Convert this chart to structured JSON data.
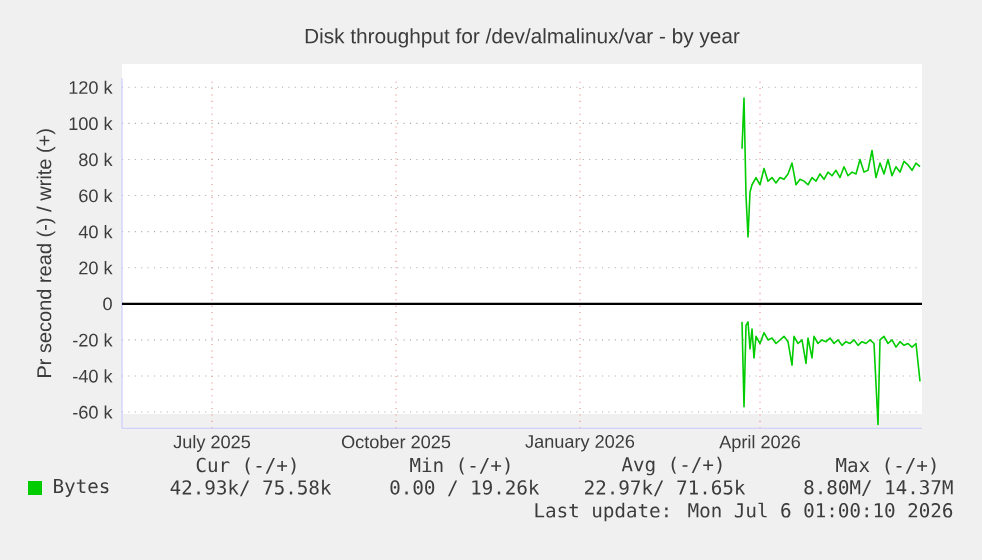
{
  "chart_data": {
    "type": "line",
    "title": "Disk throughput for /dev/almalinux/var - by year",
    "ylabel": "Pr second read (-) / write (+)",
    "xlim": [
      "2025-06-01",
      "2026-07-06"
    ],
    "ylim": [
      -69000,
      125000
    ],
    "xticks": [
      {
        "value": "2025-07-16",
        "label": "July 2025"
      },
      {
        "value": "2025-10-16",
        "label": "October 2025"
      },
      {
        "value": "2026-01-16",
        "label": "January 2026"
      },
      {
        "value": "2026-04-16",
        "label": "April 2026"
      }
    ],
    "yticks": [
      {
        "value": -60000,
        "label": "-60 k"
      },
      {
        "value": -40000,
        "label": "-40 k"
      },
      {
        "value": -20000,
        "label": "-20 k"
      },
      {
        "value": 0,
        "label": "0"
      },
      {
        "value": 20000,
        "label": "20 k"
      },
      {
        "value": 40000,
        "label": "40 k"
      },
      {
        "value": 60000,
        "label": "60 k"
      },
      {
        "value": 80000,
        "label": "80 k"
      },
      {
        "value": 100000,
        "label": "100 k"
      },
      {
        "value": 120000,
        "label": "120 k"
      }
    ],
    "grid": true,
    "legend": "bottom left",
    "line_style": "solid",
    "ref_lines": [
      {
        "axis": "y",
        "value": 0,
        "color": "#000000"
      }
    ],
    "series": [
      {
        "name": "Bytes",
        "color": "#00cc00",
        "x": [
          "2026-04-07",
          "2026-04-08",
          "2026-04-09",
          "2026-04-10",
          "2026-04-11",
          "2026-04-12",
          "2026-04-14",
          "2026-04-16",
          "2026-04-18",
          "2026-04-20",
          "2026-04-22",
          "2026-04-24",
          "2026-04-26",
          "2026-04-28",
          "2026-04-30",
          "2026-05-02",
          "2026-05-04",
          "2026-05-06",
          "2026-05-08",
          "2026-05-10",
          "2026-05-12",
          "2026-05-14",
          "2026-05-16",
          "2026-05-18",
          "2026-05-20",
          "2026-05-22",
          "2026-05-24",
          "2026-05-26",
          "2026-05-28",
          "2026-05-30",
          "2026-06-01",
          "2026-06-03",
          "2026-06-05",
          "2026-06-07",
          "2026-06-09",
          "2026-06-11",
          "2026-06-13",
          "2026-06-15",
          "2026-06-17",
          "2026-06-19",
          "2026-06-21",
          "2026-06-23",
          "2026-06-25",
          "2026-06-27",
          "2026-06-29",
          "2026-07-01",
          "2026-07-03",
          "2026-07-05"
        ],
        "values": [
          86000,
          114000,
          60000,
          37000,
          62000,
          66000,
          70000,
          66000,
          75000,
          68000,
          70000,
          67000,
          70000,
          69000,
          72000,
          78000,
          66000,
          69000,
          68000,
          66000,
          70000,
          68000,
          72000,
          69000,
          73000,
          71000,
          74000,
          70000,
          76000,
          71000,
          73000,
          72000,
          80000,
          73000,
          74000,
          85000,
          70000,
          78000,
          72000,
          80000,
          71000,
          76000,
          73000,
          79000,
          77000,
          74000,
          78000,
          76000
        ]
      },
      {
        "color": "#00cc00",
        "x": [
          "2026-04-07",
          "2026-04-08",
          "2026-04-09",
          "2026-04-10",
          "2026-04-11",
          "2026-04-12",
          "2026-04-13",
          "2026-04-14",
          "2026-04-16",
          "2026-04-18",
          "2026-04-20",
          "2026-04-22",
          "2026-04-24",
          "2026-04-26",
          "2026-04-28",
          "2026-04-30",
          "2026-05-02",
          "2026-05-03",
          "2026-05-05",
          "2026-05-07",
          "2026-05-09",
          "2026-05-10",
          "2026-05-12",
          "2026-05-13",
          "2026-05-15",
          "2026-05-17",
          "2026-05-19",
          "2026-05-21",
          "2026-05-23",
          "2026-05-25",
          "2026-05-27",
          "2026-05-29",
          "2026-05-31",
          "2026-06-02",
          "2026-06-04",
          "2026-06-06",
          "2026-06-08",
          "2026-06-10",
          "2026-06-12",
          "2026-06-14",
          "2026-06-15",
          "2026-06-17",
          "2026-06-19",
          "2026-06-21",
          "2026-06-23",
          "2026-06-25",
          "2026-06-27",
          "2026-06-29",
          "2026-07-01",
          "2026-07-03",
          "2026-07-05"
        ],
        "values": [
          -10000,
          -57000,
          -12000,
          -10000,
          -25000,
          -14000,
          -30000,
          -18000,
          -22000,
          -16000,
          -20000,
          -19000,
          -22000,
          -20000,
          -18000,
          -21000,
          -34000,
          -18000,
          -22000,
          -20000,
          -33000,
          -19000,
          -30000,
          -18000,
          -22000,
          -20000,
          -21000,
          -19000,
          -22000,
          -20000,
          -23000,
          -21000,
          -22000,
          -20000,
          -23000,
          -21000,
          -22000,
          -20000,
          -22000,
          -67000,
          -20000,
          -18000,
          -22000,
          -20000,
          -24000,
          -21000,
          -23000,
          -22000,
          -24000,
          -22000,
          -43000
        ]
      }
    ],
    "annotations": [
      "Cur (-/+)",
      "Min (-/+)",
      "Avg (-/+)",
      "Max (-/+)",
      "42.93k/ 75.58k",
      "0.00 / 19.26k",
      "22.97k/ 71.65k",
      "8.80M/ 14.37M",
      "Last update: Mon Jul  6 01:00:10 2026"
    ]
  }
}
